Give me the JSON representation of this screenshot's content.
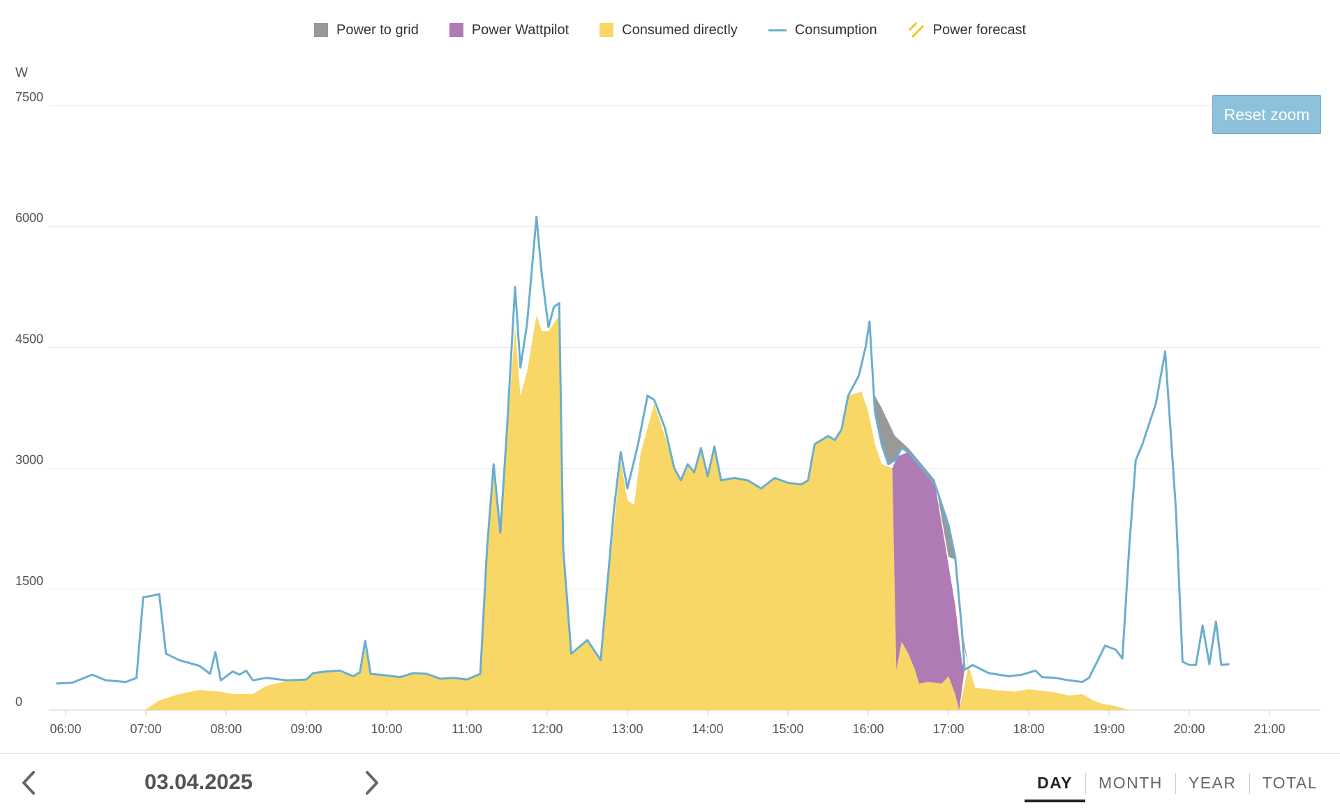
{
  "legend": [
    {
      "label": "Power to grid",
      "kind": "box",
      "color": "#999999"
    },
    {
      "label": "Power Wattpilot",
      "kind": "box",
      "color": "#b07ab5"
    },
    {
      "label": "Consumed directly",
      "kind": "box",
      "color": "#f8d766"
    },
    {
      "label": "Consumption",
      "kind": "line",
      "color": "#6aaece"
    },
    {
      "label": "Power forecast",
      "kind": "hatch",
      "color": "#f5c518"
    }
  ],
  "reset_zoom_label": "Reset zoom",
  "date": "03.04.2025",
  "tabs": [
    {
      "label": "DAY",
      "active": true
    },
    {
      "label": "MONTH",
      "active": false
    },
    {
      "label": "YEAR",
      "active": false
    },
    {
      "label": "TOTAL",
      "active": false
    }
  ],
  "icons": {
    "prev": "chevron-left-icon",
    "next": "chevron-right-icon"
  },
  "chart_data": {
    "type": "area",
    "ylabel": "W",
    "ylim": [
      0,
      7500
    ],
    "yticks": [
      0,
      1500,
      3000,
      4500,
      6000,
      7500
    ],
    "xlim": [
      "05:53",
      "21:42"
    ],
    "xticks": [
      "06:00",
      "07:00",
      "08:00",
      "09:00",
      "10:00",
      "11:00",
      "12:00",
      "13:00",
      "14:00",
      "15:00",
      "16:00",
      "17:00",
      "18:00",
      "19:00",
      "20:00",
      "21:00"
    ],
    "grid": true,
    "legend_position": "top-center",
    "series": [
      {
        "name": "Consumption",
        "kind": "line",
        "color": "#6aaece",
        "points": [
          [
            "05:53",
            330
          ],
          [
            "06:05",
            340
          ],
          [
            "06:20",
            440
          ],
          [
            "06:30",
            370
          ],
          [
            "06:45",
            350
          ],
          [
            "06:53",
            400
          ],
          [
            "06:58",
            1400
          ],
          [
            "07:05",
            1420
          ],
          [
            "07:10",
            1440
          ],
          [
            "07:15",
            700
          ],
          [
            "07:25",
            620
          ],
          [
            "07:40",
            550
          ],
          [
            "07:48",
            450
          ],
          [
            "07:52",
            720
          ],
          [
            "07:56",
            370
          ],
          [
            "08:05",
            480
          ],
          [
            "08:10",
            440
          ],
          [
            "08:15",
            490
          ],
          [
            "08:20",
            370
          ],
          [
            "08:30",
            400
          ],
          [
            "08:45",
            370
          ],
          [
            "09:00",
            380
          ],
          [
            "09:05",
            460
          ],
          [
            "09:15",
            480
          ],
          [
            "09:25",
            490
          ],
          [
            "09:35",
            420
          ],
          [
            "09:40",
            470
          ],
          [
            "09:44",
            860
          ],
          [
            "09:48",
            450
          ],
          [
            "10:00",
            430
          ],
          [
            "10:10",
            410
          ],
          [
            "10:20",
            460
          ],
          [
            "10:30",
            450
          ],
          [
            "10:40",
            390
          ],
          [
            "10:50",
            400
          ],
          [
            "11:00",
            380
          ],
          [
            "11:10",
            450
          ],
          [
            "11:15",
            2000
          ],
          [
            "11:20",
            3050
          ],
          [
            "11:25",
            2200
          ],
          [
            "11:30",
            3500
          ],
          [
            "11:36",
            5250
          ],
          [
            "11:40",
            4250
          ],
          [
            "11:45",
            4800
          ],
          [
            "11:52",
            6120
          ],
          [
            "11:56",
            5400
          ],
          [
            "12:01",
            4750
          ],
          [
            "12:05",
            5000
          ],
          [
            "12:09",
            5050
          ],
          [
            "12:12",
            2000
          ],
          [
            "12:18",
            700
          ],
          [
            "12:30",
            870
          ],
          [
            "12:40",
            620
          ],
          [
            "12:50",
            2500
          ],
          [
            "12:55",
            3200
          ],
          [
            "13:00",
            2750
          ],
          [
            "13:08",
            3300
          ],
          [
            "13:15",
            3900
          ],
          [
            "13:20",
            3850
          ],
          [
            "13:28",
            3500
          ],
          [
            "13:35",
            3000
          ],
          [
            "13:40",
            2850
          ],
          [
            "13:45",
            3050
          ],
          [
            "13:50",
            2950
          ],
          [
            "13:55",
            3250
          ],
          [
            "14:00",
            2900
          ],
          [
            "14:05",
            3270
          ],
          [
            "14:10",
            2850
          ],
          [
            "14:20",
            2880
          ],
          [
            "14:30",
            2850
          ],
          [
            "14:40",
            2750
          ],
          [
            "14:50",
            2880
          ],
          [
            "15:00",
            2820
          ],
          [
            "15:10",
            2800
          ],
          [
            "15:15",
            2850
          ],
          [
            "15:20",
            3300
          ],
          [
            "15:30",
            3400
          ],
          [
            "15:35",
            3350
          ],
          [
            "15:40",
            3480
          ],
          [
            "15:45",
            3900
          ],
          [
            "15:53",
            4150
          ],
          [
            "15:58",
            4500
          ],
          [
            "16:01",
            4820
          ],
          [
            "16:05",
            3700
          ],
          [
            "16:10",
            3300
          ],
          [
            "16:15",
            3050
          ],
          [
            "16:20",
            3100
          ],
          [
            "16:25",
            3250
          ],
          [
            "16:30",
            3200
          ],
          [
            "16:40",
            3000
          ],
          [
            "16:50",
            2800
          ],
          [
            "17:00",
            2300
          ],
          [
            "17:05",
            1900
          ],
          [
            "17:10",
            1000
          ],
          [
            "17:12",
            500
          ],
          [
            "17:18",
            560
          ],
          [
            "17:30",
            460
          ],
          [
            "17:45",
            420
          ],
          [
            "17:55",
            440
          ],
          [
            "18:05",
            490
          ],
          [
            "18:10",
            410
          ],
          [
            "18:20",
            400
          ],
          [
            "18:30",
            370
          ],
          [
            "18:40",
            350
          ],
          [
            "18:45",
            400
          ],
          [
            "18:52",
            630
          ],
          [
            "18:57",
            800
          ],
          [
            "19:05",
            750
          ],
          [
            "19:10",
            640
          ],
          [
            "19:15",
            2000
          ],
          [
            "19:20",
            3100
          ],
          [
            "19:25",
            3300
          ],
          [
            "19:35",
            3800
          ],
          [
            "19:42",
            4450
          ],
          [
            "19:50",
            2500
          ],
          [
            "19:55",
            600
          ],
          [
            "20:00",
            560
          ],
          [
            "20:05",
            560
          ],
          [
            "20:10",
            1050
          ],
          [
            "20:15",
            570
          ],
          [
            "20:20",
            1100
          ],
          [
            "20:24",
            560
          ],
          [
            "20:30",
            570
          ]
        ]
      },
      {
        "name": "Consumed directly",
        "kind": "area",
        "color": "#f8d766",
        "points": [
          [
            "06:59",
            0
          ],
          [
            "07:10",
            120
          ],
          [
            "07:25",
            200
          ],
          [
            "07:40",
            250
          ],
          [
            "07:55",
            230
          ],
          [
            "08:05",
            200
          ],
          [
            "08:20",
            200
          ],
          [
            "08:30",
            300
          ],
          [
            "08:45",
            360
          ],
          [
            "09:00",
            370
          ],
          [
            "09:05",
            460
          ],
          [
            "09:15",
            480
          ],
          [
            "09:25",
            470
          ],
          [
            "09:35",
            410
          ],
          [
            "09:40",
            460
          ],
          [
            "09:44",
            760
          ],
          [
            "09:48",
            450
          ],
          [
            "10:00",
            430
          ],
          [
            "10:10",
            410
          ],
          [
            "10:20",
            460
          ],
          [
            "10:30",
            440
          ],
          [
            "10:40",
            390
          ],
          [
            "10:50",
            400
          ],
          [
            "11:00",
            380
          ],
          [
            "11:10",
            450
          ],
          [
            "11:15",
            1900
          ],
          [
            "11:20",
            3000
          ],
          [
            "11:25",
            2150
          ],
          [
            "11:30",
            3400
          ],
          [
            "11:36",
            4750
          ],
          [
            "11:40",
            3900
          ],
          [
            "11:45",
            4200
          ],
          [
            "11:52",
            4900
          ],
          [
            "11:56",
            4700
          ],
          [
            "12:01",
            4700
          ],
          [
            "12:05",
            4800
          ],
          [
            "12:09",
            4900
          ],
          [
            "12:12",
            2000
          ],
          [
            "12:18",
            700
          ],
          [
            "12:30",
            870
          ],
          [
            "12:40",
            620
          ],
          [
            "12:50",
            2300
          ],
          [
            "12:55",
            3100
          ],
          [
            "13:00",
            2600
          ],
          [
            "13:05",
            2550
          ],
          [
            "13:10",
            3200
          ],
          [
            "13:15",
            3500
          ],
          [
            "13:20",
            3800
          ],
          [
            "13:28",
            3400
          ],
          [
            "13:35",
            3000
          ],
          [
            "13:40",
            2850
          ],
          [
            "13:45",
            3050
          ],
          [
            "13:50",
            2950
          ],
          [
            "13:55",
            3250
          ],
          [
            "14:00",
            2900
          ],
          [
            "14:05",
            3270
          ],
          [
            "14:10",
            2850
          ],
          [
            "14:20",
            2880
          ],
          [
            "14:30",
            2850
          ],
          [
            "14:40",
            2750
          ],
          [
            "14:50",
            2880
          ],
          [
            "15:00",
            2820
          ],
          [
            "15:10",
            2800
          ],
          [
            "15:15",
            2850
          ],
          [
            "15:20",
            3300
          ],
          [
            "15:30",
            3400
          ],
          [
            "15:35",
            3350
          ],
          [
            "15:40",
            3480
          ],
          [
            "15:45",
            3900
          ],
          [
            "15:55",
            3950
          ],
          [
            "16:00",
            3700
          ],
          [
            "16:05",
            3300
          ],
          [
            "16:10",
            3050
          ],
          [
            "16:18",
            3000
          ],
          [
            "16:21",
            500
          ],
          [
            "16:25",
            850
          ],
          [
            "16:30",
            700
          ],
          [
            "16:35",
            500
          ],
          [
            "16:38",
            330
          ],
          [
            "16:45",
            350
          ],
          [
            "16:55",
            330
          ],
          [
            "17:00",
            420
          ],
          [
            "17:05",
            200
          ],
          [
            "17:08",
            0
          ],
          [
            "17:15",
            550
          ],
          [
            "17:20",
            280
          ],
          [
            "17:35",
            250
          ],
          [
            "17:50",
            230
          ],
          [
            "18:00",
            260
          ],
          [
            "18:10",
            240
          ],
          [
            "18:20",
            220
          ],
          [
            "18:30",
            180
          ],
          [
            "18:40",
            200
          ],
          [
            "18:48",
            120
          ],
          [
            "18:55",
            80
          ],
          [
            "19:05",
            50
          ],
          [
            "19:15",
            0
          ]
        ]
      },
      {
        "name": "Power Wattpilot",
        "kind": "area",
        "color": "#b07ab5",
        "points": [
          [
            "16:18",
            3000
          ],
          [
            "16:22",
            3150
          ],
          [
            "16:30",
            3200
          ],
          [
            "16:40",
            3000
          ],
          [
            "16:50",
            2800
          ],
          [
            "16:58",
            2000
          ],
          [
            "17:05",
            1300
          ],
          [
            "17:10",
            600
          ],
          [
            "17:12",
            500
          ]
        ],
        "baseline": [
          [
            "16:18",
            3000
          ],
          [
            "16:21",
            500
          ],
          [
            "16:25",
            850
          ],
          [
            "16:30",
            700
          ],
          [
            "16:35",
            500
          ],
          [
            "16:38",
            330
          ],
          [
            "16:45",
            350
          ],
          [
            "16:55",
            330
          ],
          [
            "17:00",
            420
          ],
          [
            "17:05",
            200
          ],
          [
            "17:08",
            0
          ],
          [
            "17:12",
            500
          ]
        ]
      },
      {
        "name": "Power to grid",
        "kind": "area",
        "color": "#999999",
        "points": [
          [
            "16:05",
            3900
          ],
          [
            "16:10",
            3750
          ],
          [
            "16:20",
            3400
          ],
          [
            "16:30",
            3250
          ],
          [
            "16:40",
            3050
          ],
          [
            "16:50",
            2850
          ],
          [
            "17:00",
            1900
          ],
          [
            "17:05",
            1870
          ],
          [
            "17:07",
            1400
          ],
          [
            "17:10",
            900
          ],
          [
            "17:15",
            550
          ]
        ],
        "baseline": [
          [
            "16:05",
            3700
          ],
          [
            "16:10",
            3300
          ],
          [
            "16:15",
            3050
          ],
          [
            "16:20",
            3100
          ],
          [
            "16:25",
            3250
          ],
          [
            "16:30",
            3200
          ],
          [
            "16:40",
            3000
          ],
          [
            "16:50",
            2800
          ],
          [
            "17:00",
            2300
          ],
          [
            "17:05",
            1900
          ],
          [
            "17:10",
            1000
          ],
          [
            "17:15",
            550
          ]
        ]
      }
    ]
  }
}
